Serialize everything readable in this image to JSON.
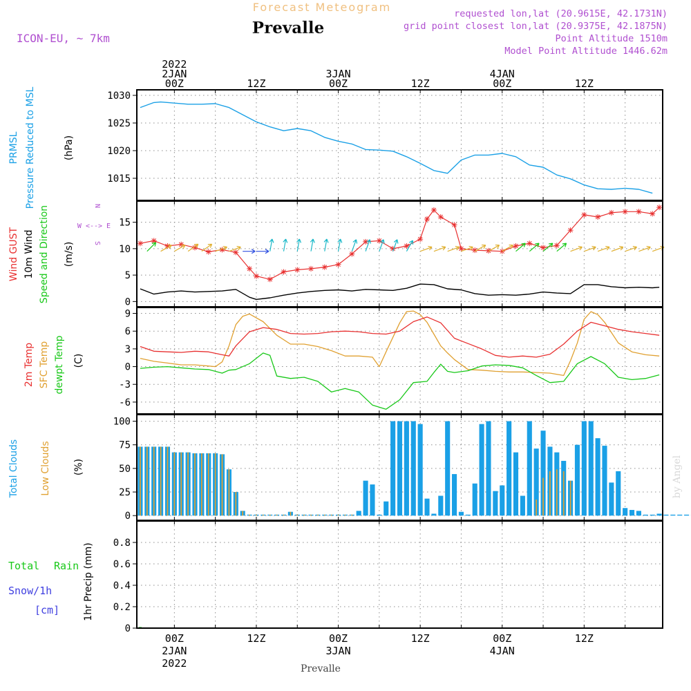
{
  "header": {
    "title": "Forecast Meteogram",
    "location": "Prevalle",
    "model": "ICON-EU, ~ 7km",
    "requested": "requested lon,lat (20.9615E, 42.1731N)",
    "gridpoint": "grid point closest lon,lat (20.9375E, 42.1875N)",
    "altitude": "Point Altitude 1510m",
    "model_altitude": "Model Point Altitude 1446.62m",
    "watermark": "by Angel",
    "footer": "Prevalle"
  },
  "time_axis": {
    "top_labels": [
      {
        "t": 0,
        "lines": [
          "2022",
          "2JAN",
          "00Z"
        ]
      },
      {
        "t": 12,
        "lines": [
          "12Z"
        ]
      },
      {
        "t": 24,
        "lines": [
          "3JAN",
          "00Z"
        ]
      },
      {
        "t": 36,
        "lines": [
          "12Z"
        ]
      },
      {
        "t": 48,
        "lines": [
          "4JAN",
          "00Z"
        ]
      },
      {
        "t": 60,
        "lines": [
          "12Z"
        ]
      }
    ],
    "bottom_labels": [
      {
        "t": 0,
        "lines": [
          "00Z",
          "2JAN",
          "2022"
        ]
      },
      {
        "t": 12,
        "lines": [
          "12Z"
        ]
      },
      {
        "t": 24,
        "lines": [
          "00Z",
          "3JAN"
        ]
      },
      {
        "t": 36,
        "lines": [
          "12Z"
        ]
      },
      {
        "t": 48,
        "lines": [
          "00Z",
          "4JAN"
        ]
      },
      {
        "t": 60,
        "lines": [
          "12Z"
        ]
      }
    ],
    "range_hours": [
      -5.5,
      71.5
    ]
  },
  "colors": {
    "pressure": "#1aa0e6",
    "gust": "#e83030",
    "wind": "#000000",
    "temp2m": "#e83030",
    "sfc": "#e0a030",
    "dewpt": "#18c818",
    "total_clouds": "#1aa0e6",
    "low_clouds": "#e0a030",
    "rain": "#18c818",
    "snow": "#4040e0",
    "purple": "#b050d0",
    "title_orange": "#f0c080"
  },
  "panels": {
    "pressure": {
      "labels": [
        "PRMSL",
        "Pressure Reduced to MSL"
      ],
      "unit": "(hPa)"
    },
    "wind": {
      "labels": [
        "Wind GUST",
        "10m Wind",
        "Speed and Direction"
      ],
      "unit": "(m/s)",
      "compass": [
        "N",
        "W <--> E",
        "S"
      ]
    },
    "temp": {
      "labels": [
        "2m Temp",
        "SFC Temp",
        "dewpt Temp"
      ],
      "unit": "(C)"
    },
    "clouds": {
      "labels": [
        "Total Clouds",
        "Low Clouds"
      ],
      "unit": "(%)"
    },
    "precip": {
      "labels": [
        "Total",
        "Rain",
        "Snow/1h",
        "[cm]"
      ],
      "unit": "1hr Precip (mm)"
    }
  },
  "chart_data": [
    {
      "type": "line",
      "title": "PRMSL Pressure Reduced to MSL",
      "ylabel": "(hPa)",
      "ylim": [
        1011,
        1031
      ],
      "yticks": [
        1015,
        1020,
        1025,
        1030
      ],
      "series": [
        {
          "name": "PRMSL",
          "t": [
            -5,
            -3,
            -2,
            0,
            2,
            4,
            6,
            8,
            10,
            12,
            14,
            16,
            18,
            20,
            22,
            24,
            26,
            28,
            30,
            32,
            34,
            36,
            38,
            40,
            42,
            44,
            46,
            48,
            50,
            52,
            54,
            56,
            58,
            60,
            62,
            64,
            66,
            68,
            70
          ],
          "values": [
            1027.8,
            1028.7,
            1028.8,
            1028.6,
            1028.4,
            1028.4,
            1028.5,
            1027.8,
            1026.5,
            1025.2,
            1024.3,
            1023.6,
            1024.0,
            1023.6,
            1022.4,
            1021.7,
            1021.2,
            1020.2,
            1020.1,
            1019.9,
            1018.9,
            1017.7,
            1016.4,
            1015.9,
            1018.3,
            1019.2,
            1019.2,
            1019.5,
            1018.9,
            1017.4,
            1017.0,
            1015.6,
            1014.9,
            1013.8,
            1013.1,
            1013.0,
            1013.2,
            1013.0,
            1012.3
          ]
        }
      ]
    },
    {
      "type": "line",
      "title": "Wind GUST / 10m Wind Speed and Direction",
      "ylabel": "(m/s)",
      "ylim": [
        -1,
        19
      ],
      "yticks": [
        0,
        5,
        10,
        15
      ],
      "series": [
        {
          "name": "Wind GUST",
          "t": [
            -5,
            -3,
            -1,
            1,
            3,
            5,
            7,
            9,
            11,
            12,
            14,
            16,
            18,
            20,
            22,
            24,
            26,
            28,
            30,
            32,
            34,
            36,
            37,
            38,
            39,
            41,
            42,
            44,
            46,
            48,
            50,
            52,
            54,
            56,
            58,
            60,
            62,
            64,
            66,
            68,
            70,
            71
          ],
          "values": [
            11.0,
            11.5,
            10.5,
            10.8,
            10.2,
            9.4,
            9.8,
            9.3,
            6.2,
            4.8,
            4.2,
            5.6,
            6.0,
            6.2,
            6.5,
            7.0,
            9.0,
            11.3,
            11.5,
            10.0,
            10.5,
            11.8,
            15.6,
            17.3,
            16.0,
            14.5,
            10.0,
            9.7,
            9.6,
            9.5,
            10.5,
            11.0,
            10.2,
            10.6,
            13.5,
            16.4,
            16.0,
            16.8,
            17.0,
            17.0,
            16.6,
            17.8
          ]
        },
        {
          "name": "10m Wind",
          "t": [
            -5,
            -3,
            -1,
            1,
            3,
            5,
            7,
            9,
            11,
            12,
            14,
            16,
            18,
            20,
            22,
            24,
            26,
            28,
            30,
            32,
            34,
            36,
            38,
            40,
            42,
            44,
            46,
            48,
            50,
            52,
            54,
            56,
            58,
            60,
            62,
            64,
            66,
            68,
            70,
            71
          ],
          "values": [
            2.4,
            1.4,
            1.8,
            2.0,
            1.8,
            1.9,
            2.0,
            2.3,
            0.8,
            0.4,
            0.7,
            1.2,
            1.6,
            1.9,
            2.1,
            2.2,
            2.0,
            2.3,
            2.2,
            2.1,
            2.5,
            3.3,
            3.2,
            2.4,
            2.2,
            1.5,
            1.2,
            1.3,
            1.2,
            1.4,
            1.8,
            1.6,
            1.5,
            3.2,
            3.2,
            2.8,
            2.6,
            2.7,
            2.6,
            2.7
          ]
        },
        {
          "name": "Direction arrows",
          "t": [
            -4,
            -2,
            0,
            2,
            4,
            6,
            8,
            10,
            12,
            14,
            16,
            18,
            20,
            22,
            24,
            26,
            28,
            30,
            32,
            34,
            36,
            38,
            40,
            42,
            44,
            46,
            48,
            50,
            52,
            54,
            56,
            58,
            60,
            62,
            64,
            66,
            68,
            70
          ],
          "values": [
            225,
            240,
            240,
            235,
            235,
            250,
            250,
            270,
            270,
            190,
            190,
            190,
            190,
            190,
            190,
            200,
            200,
            200,
            200,
            210,
            250,
            250,
            250,
            250,
            240,
            240,
            240,
            230,
            230,
            230,
            230,
            250,
            250,
            250,
            250,
            250,
            250,
            250
          ]
        }
      ]
    },
    {
      "type": "line",
      "title": "2m Temp / SFC Temp / dewpt Temp",
      "ylabel": "(C)",
      "ylim": [
        -8,
        10
      ],
      "yticks": [
        -6,
        -3,
        0,
        3,
        6,
        9
      ],
      "series": [
        {
          "name": "2m Temp",
          "t": [
            -5,
            -3,
            -1,
            1,
            3,
            5,
            7,
            8,
            9,
            11,
            13,
            15,
            17,
            19,
            21,
            23,
            25,
            27,
            29,
            31,
            33,
            35,
            37,
            39,
            41,
            43,
            45,
            47,
            49,
            51,
            53,
            55,
            57,
            59,
            61,
            63,
            65,
            67,
            69,
            71
          ],
          "values": [
            3.4,
            2.6,
            2.5,
            2.4,
            2.6,
            2.5,
            2.0,
            1.8,
            3.5,
            5.9,
            6.6,
            6.3,
            5.6,
            5.5,
            5.6,
            5.9,
            6.0,
            5.9,
            5.6,
            5.5,
            6.0,
            7.6,
            8.4,
            7.4,
            4.8,
            3.9,
            3.0,
            1.9,
            1.6,
            1.8,
            1.6,
            2.1,
            3.8,
            6.0,
            7.5,
            6.9,
            6.3,
            5.9,
            5.6,
            5.3
          ]
        },
        {
          "name": "SFC Temp",
          "t": [
            -5,
            -3,
            -1,
            1,
            3,
            5,
            6,
            7,
            8,
            9,
            10,
            11,
            13,
            15,
            17,
            19,
            21,
            23,
            25,
            27,
            29,
            30,
            31,
            33,
            34,
            35,
            36,
            37,
            38,
            39,
            40,
            41,
            43,
            45,
            47,
            49,
            51,
            53,
            55,
            57,
            58,
            59,
            60,
            61,
            62,
            63,
            65,
            67,
            69,
            71
          ],
          "values": [
            1.4,
            0.9,
            0.6,
            0.3,
            0.3,
            0.1,
            0.0,
            0.8,
            3.5,
            7.1,
            8.5,
            8.9,
            7.6,
            5.3,
            3.8,
            3.8,
            3.4,
            2.7,
            1.8,
            1.8,
            1.6,
            0.0,
            2.5,
            7.4,
            9.3,
            9.4,
            8.8,
            7.5,
            5.5,
            3.5,
            2.3,
            1.2,
            -0.5,
            -0.6,
            -0.8,
            -0.9,
            -0.9,
            -1.0,
            -1.1,
            -1.5,
            1.0,
            4.0,
            8.0,
            9.3,
            8.8,
            7.5,
            4.0,
            2.5,
            2.0,
            1.8
          ]
        },
        {
          "name": "dewpt Temp",
          "t": [
            -5,
            -3,
            -1,
            1,
            3,
            5,
            6,
            7,
            8,
            9,
            11,
            13,
            14,
            15,
            17,
            19,
            21,
            23,
            25,
            27,
            29,
            31,
            33,
            35,
            37,
            38,
            39,
            40,
            41,
            43,
            45,
            47,
            49,
            51,
            53,
            55,
            57,
            59,
            61,
            63,
            65,
            67,
            69,
            71
          ],
          "values": [
            -0.3,
            -0.1,
            0.0,
            -0.2,
            -0.4,
            -0.5,
            -0.8,
            -1.1,
            -0.6,
            -0.5,
            0.5,
            2.3,
            1.9,
            -1.6,
            -2.0,
            -1.8,
            -2.5,
            -4.3,
            -3.7,
            -4.3,
            -6.5,
            -7.2,
            -5.6,
            -2.7,
            -2.5,
            -1.0,
            0.4,
            -0.8,
            -1.0,
            -0.7,
            0.1,
            0.3,
            0.2,
            -0.2,
            -1.5,
            -2.7,
            -2.5,
            0.5,
            1.7,
            0.5,
            -1.8,
            -2.2,
            -2.0,
            -1.4
          ]
        }
      ]
    },
    {
      "type": "bar",
      "title": "Total Clouds / Low Clouds",
      "ylabel": "(%)",
      "ylim": [
        -5,
        107
      ],
      "yticks": [
        0,
        25,
        50,
        75,
        100
      ],
      "t_start": -5,
      "series": [
        {
          "name": "Total Clouds",
          "values": [
            73,
            73,
            73,
            73,
            73,
            67,
            67,
            67,
            66,
            66,
            66,
            66,
            65,
            49,
            25,
            5,
            1,
            1,
            1,
            1,
            1,
            1,
            4,
            1,
            1,
            1,
            1,
            1,
            1,
            1,
            1,
            1,
            5,
            37,
            33,
            1,
            15,
            100,
            100,
            100,
            100,
            97,
            18,
            2,
            21,
            100,
            44,
            4,
            1,
            34,
            97,
            100,
            26,
            32,
            100,
            67,
            21,
            100,
            71,
            90,
            73,
            67,
            58,
            37,
            75,
            100,
            100,
            82,
            74,
            35,
            47,
            8,
            6,
            5,
            1,
            1,
            2,
            1,
            1,
            1,
            1,
            1
          ]
        },
        {
          "name": "Low Clouds",
          "values": [
            73,
            73,
            73,
            73,
            73,
            67,
            67,
            67,
            66,
            66,
            66,
            66,
            65,
            49,
            25,
            5,
            1,
            1,
            1,
            1,
            1,
            1,
            4,
            1,
            1,
            1,
            1,
            1,
            1,
            1,
            1,
            1,
            0,
            0,
            0,
            0,
            0,
            0,
            0,
            0,
            0,
            0,
            0,
            0,
            0,
            0,
            0,
            0,
            0,
            0,
            0,
            0,
            0,
            0,
            0,
            0,
            0,
            0,
            17,
            40,
            47,
            49,
            47,
            37,
            0,
            0,
            0,
            0,
            0,
            0,
            0,
            0,
            0,
            0,
            0,
            0,
            0,
            0,
            0,
            0,
            0,
            0
          ]
        }
      ]
    },
    {
      "type": "bar",
      "title": "1hr Precip",
      "ylabel": "1hr Precip (mm)",
      "ylim": [
        0,
        1
      ],
      "yticks": [
        0,
        0.2,
        0.4,
        0.6,
        0.8
      ],
      "series": [
        {
          "name": "Total Rain",
          "values": [
            0.01
          ]
        },
        {
          "name": "Snow/1h",
          "values": [
            0
          ]
        }
      ]
    }
  ]
}
